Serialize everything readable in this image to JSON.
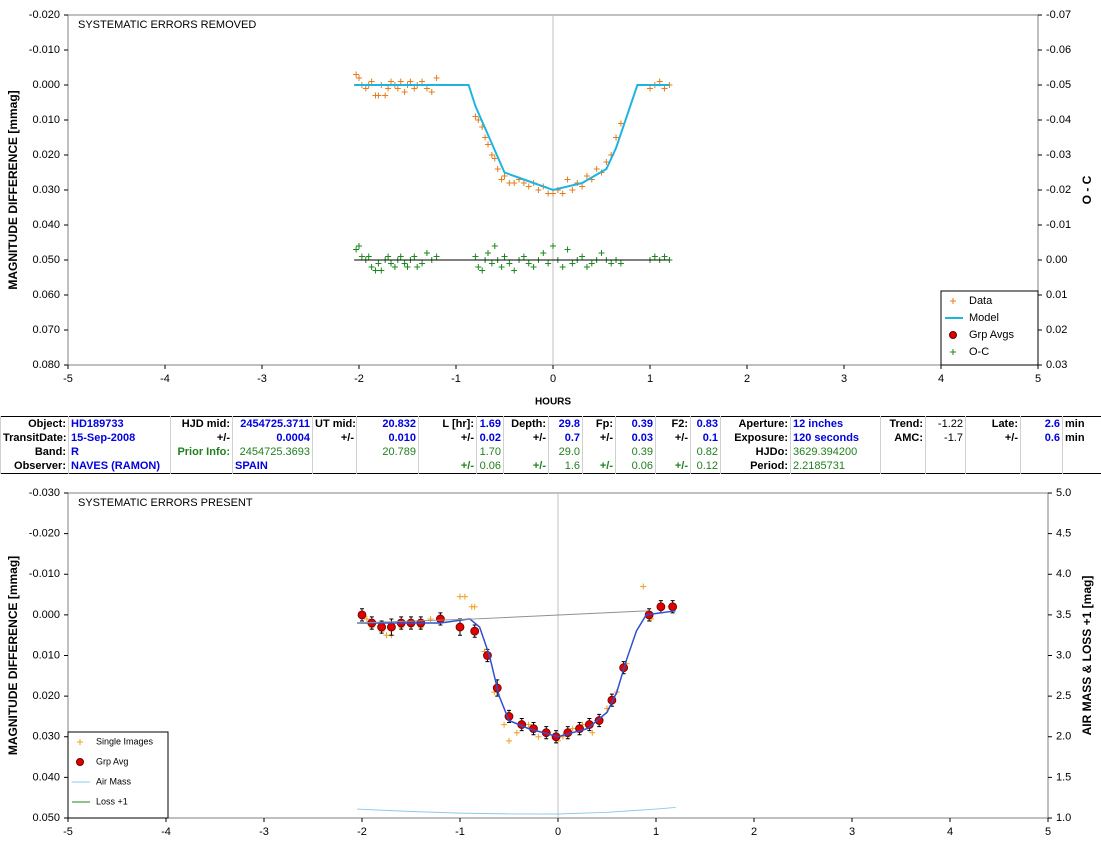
{
  "chart_data": [
    {
      "type": "line",
      "annotation": "SYSTEMATIC ERRORS REMOVED",
      "xlabel": "HOURS",
      "ylabel": "MAGNITUDE DIFFERENCE [mmag]",
      "y2label": "O - C",
      "xlim": [
        -5,
        5
      ],
      "xticks": [
        -5,
        -4,
        -3,
        -2,
        -1,
        0,
        1,
        2,
        3,
        4,
        5
      ],
      "ylim": [
        0.08,
        -0.02
      ],
      "yticks": [
        {
          "value": -0.02,
          "label": "-0.020"
        },
        {
          "value": -0.01,
          "label": "-0.010"
        },
        {
          "value": 0,
          "label": "0.000"
        },
        {
          "value": 0.01,
          "label": "0.010"
        },
        {
          "value": 0.02,
          "label": "0.020"
        },
        {
          "value": 0.03,
          "label": "0.030"
        },
        {
          "value": 0.04,
          "label": "0.040"
        },
        {
          "value": 0.05,
          "label": "0.050"
        },
        {
          "value": 0.06,
          "label": "0.060"
        },
        {
          "value": 0.07,
          "label": "0.070"
        },
        {
          "value": 0.08,
          "label": "0.080"
        }
      ],
      "y2lim": [
        0.03,
        -0.07
      ],
      "y2ticks": [
        -0.07,
        -0.06,
        -0.05,
        -0.04,
        -0.03,
        -0.02,
        -0.01,
        {
          "value": 0,
          "label": "0.00"
        },
        0.01,
        0.02,
        0.03
      ],
      "legend": "lower right",
      "series": [
        {
          "name": "Data",
          "mark": "plus",
          "color": "#e87b1e",
          "x": [
            -2.03,
            -2.0,
            -1.97,
            -1.93,
            -1.9,
            -1.87,
            -1.83,
            -1.8,
            -1.77,
            -1.73,
            -1.7,
            -1.67,
            -1.63,
            -1.6,
            -1.57,
            -1.53,
            -1.5,
            -1.47,
            -1.43,
            -1.4,
            -1.35,
            -1.3,
            -1.25,
            -1.2,
            -0.8,
            -0.77,
            -0.73,
            -0.7,
            -0.67,
            -0.63,
            -0.6,
            -0.57,
            -0.53,
            -0.5,
            -0.45,
            -0.4,
            -0.35,
            -0.3,
            -0.25,
            -0.2,
            -0.15,
            -0.1,
            -0.05,
            0.0,
            0.05,
            0.1,
            0.15,
            0.2,
            0.25,
            0.3,
            0.35,
            0.4,
            0.45,
            0.5,
            0.55,
            0.6,
            0.65,
            0.7,
            1.0,
            1.05,
            1.1,
            1.15,
            1.2
          ],
          "values": [
            -0.003,
            -0.002,
            0.0,
            0.001,
            0.0,
            -0.001,
            0.003,
            0.003,
            0.0,
            0.003,
            0.001,
            -0.001,
            0.0,
            0.001,
            -0.001,
            0.002,
            0.0,
            -0.001,
            0.001,
            0.0,
            -0.001,
            0.001,
            0.002,
            -0.002,
            0.009,
            0.01,
            0.012,
            0.015,
            0.017,
            0.02,
            0.021,
            0.024,
            0.027,
            0.026,
            0.028,
            0.028,
            0.027,
            0.028,
            0.029,
            0.028,
            0.03,
            0.029,
            0.031,
            0.031,
            0.03,
            0.031,
            0.027,
            0.03,
            0.028,
            0.029,
            0.026,
            0.027,
            0.024,
            0.025,
            0.022,
            0.02,
            0.015,
            0.011,
            0.001,
            0.0,
            -0.001,
            0.001,
            0.0
          ]
        },
        {
          "name": "Model",
          "mark": "line",
          "color": "#1fb4e0",
          "width": 2,
          "x": [
            -2.05,
            -0.87,
            -0.8,
            -0.5,
            -0.3,
            0,
            0.3,
            0.55,
            0.65,
            0.87,
            1.2
          ],
          "values": [
            0,
            0,
            0.006,
            0.025,
            0.027,
            0.03,
            0.028,
            0.024,
            0.018,
            0,
            0
          ]
        },
        {
          "name": "Grp Avgs",
          "mark": "circle",
          "color": "#e00000",
          "x": [],
          "values": []
        },
        {
          "name": "O-C",
          "mark": "plus",
          "color": "#1a8a1a",
          "axis": "y2",
          "x": [
            -2.03,
            -2.0,
            -1.97,
            -1.93,
            -1.9,
            -1.87,
            -1.83,
            -1.8,
            -1.77,
            -1.73,
            -1.7,
            -1.67,
            -1.63,
            -1.6,
            -1.57,
            -1.53,
            -1.5,
            -1.47,
            -1.43,
            -1.4,
            -1.35,
            -1.3,
            -1.25,
            -1.2,
            -0.8,
            -0.77,
            -0.73,
            -0.7,
            -0.67,
            -0.63,
            -0.6,
            -0.57,
            -0.53,
            -0.5,
            -0.45,
            -0.4,
            -0.35,
            -0.3,
            -0.25,
            -0.2,
            -0.15,
            -0.1,
            -0.05,
            0.0,
            0.05,
            0.1,
            0.15,
            0.2,
            0.25,
            0.3,
            0.35,
            0.4,
            0.45,
            0.5,
            0.55,
            0.6,
            0.65,
            0.7,
            1.0,
            1.05,
            1.1,
            1.15,
            1.2
          ],
          "values": [
            -0.003,
            -0.004,
            -0.001,
            0.0,
            -0.001,
            0.002,
            0.003,
            0.001,
            0.003,
            0.0,
            -0.001,
            0.001,
            0.002,
            0.0,
            -0.001,
            0.001,
            0.002,
            0.0,
            -0.001,
            0.002,
            0.001,
            -0.002,
            0.0,
            -0.001,
            -0.001,
            0.002,
            0.003,
            0.0,
            -0.002,
            0.001,
            -0.004,
            0.0,
            0.002,
            -0.001,
            0.001,
            0.003,
            0.0,
            -0.001,
            0.001,
            0.002,
            0.0,
            -0.002,
            0.001,
            -0.004,
            0.0,
            0.002,
            -0.003,
            0.001,
            0.0,
            -0.001,
            0.002,
            0.001,
            0.0,
            -0.002,
            0.0,
            0.001,
            0.0,
            0.001,
            0.0,
            -0.001,
            0.0,
            -0.001,
            0.0
          ]
        },
        {
          "mark": "line",
          "color": "#000000",
          "axis": "y2",
          "width": 1,
          "x": [
            -2.05,
            1.2
          ],
          "values": [
            0,
            0
          ]
        }
      ]
    },
    {
      "type": "line",
      "annotation": "SYSTEMATIC ERRORS PRESENT",
      "ylabel": "MAGNITUDE DIFFERENCE [mmag]",
      "y2label": "AIR MASS & LOSS +1 [mag]",
      "xlim": [
        -5,
        5
      ],
      "xticks": [
        -5,
        -4,
        -3,
        -2,
        -1,
        0,
        1,
        2,
        3,
        4,
        5
      ],
      "ylim": [
        0.05,
        -0.03
      ],
      "yticks": [
        {
          "value": -0.03,
          "label": "-0.030"
        },
        {
          "value": -0.02,
          "label": "-0.020"
        },
        {
          "value": -0.01,
          "label": "-0.010"
        },
        {
          "value": 0,
          "label": "0.000"
        },
        {
          "value": 0.01,
          "label": "0.010"
        },
        {
          "value": 0.02,
          "label": "0.020"
        },
        {
          "value": 0.03,
          "label": "0.030"
        },
        {
          "value": 0.04,
          "label": "0.040"
        },
        {
          "value": 0.05,
          "label": "0.050"
        }
      ],
      "y2lim": [
        1,
        5
      ],
      "y2ticks": [
        {
          "value": 1,
          "label": "1.0"
        },
        1.5,
        {
          "value": 2,
          "label": "2.0"
        },
        2.5,
        {
          "value": 3,
          "label": "3.0"
        },
        3.5,
        {
          "value": 4,
          "label": "4.0"
        },
        4.5,
        {
          "value": 5,
          "label": "5.0"
        }
      ],
      "legend": "lower left",
      "series": [
        {
          "name": "Single Images",
          "mark": "plus",
          "color": "#f0a020",
          "x": [
            -1.95,
            -1.9,
            -1.8,
            -1.75,
            -1.7,
            -1.6,
            -1.5,
            -1.4,
            -1.3,
            -1.0,
            -0.95,
            -0.88,
            -0.85,
            -0.75,
            -0.65,
            -0.55,
            -0.5,
            -0.42,
            -0.3,
            -0.2,
            -0.1,
            0.0,
            0.05,
            0.15,
            0.25,
            0.35,
            0.4,
            0.5,
            0.6,
            0.7,
            0.87,
            0.95,
            1.05,
            1.15
          ],
          "values": [
            0.001,
            0.003,
            0.004,
            0.005,
            0.005,
            0.003,
            0.002,
            0.003,
            0.001,
            -0.0045,
            -0.0045,
            -0.002,
            -0.002,
            0.009,
            0.019,
            0.027,
            0.031,
            0.029,
            0.027,
            0.03,
            0.029,
            0.031,
            0.03,
            0.028,
            0.027,
            0.029,
            0.026,
            0.023,
            0.019,
            0.012,
            -0.007,
            0.001,
            -0.002,
            -0.002
          ]
        },
        {
          "name": "Grp Avg",
          "mark": "circle",
          "color": "#e00000",
          "x": [
            -2.0,
            -1.9,
            -1.8,
            -1.7,
            -1.6,
            -1.5,
            -1.4,
            -1.2,
            -1.0,
            -0.85,
            -0.72,
            -0.62,
            -0.5,
            -0.37,
            -0.25,
            -0.12,
            -0.02,
            0.1,
            0.22,
            0.32,
            0.42,
            0.55,
            0.67,
            0.93,
            1.05,
            1.17
          ],
          "values": [
            0.0,
            0.002,
            0.003,
            0.003,
            0.002,
            0.002,
            0.002,
            0.001,
            0.003,
            0.004,
            0.01,
            0.018,
            0.025,
            0.027,
            0.028,
            0.029,
            0.03,
            0.029,
            0.028,
            0.027,
            0.026,
            0.021,
            0.013,
            0.0,
            -0.002,
            -0.002
          ],
          "error": [
            0.0015,
            0.0015,
            0.0015,
            0.002,
            0.0015,
            0.0015,
            0.0015,
            0.0015,
            0.002,
            0.0015,
            0.0015,
            0.002,
            0.0015,
            0.0015,
            0.0015,
            0.0015,
            0.0015,
            0.0015,
            0.0015,
            0.0015,
            0.0015,
            0.0015,
            0.0015,
            0.0015,
            0.0015,
            0.0015
          ]
        },
        {
          "name": "Air Mass",
          "mark": "line",
          "color": "#8cc8ec",
          "axis": "y2",
          "width": 1,
          "x": [
            -2.05,
            -1.5,
            -1.0,
            -0.5,
            0,
            0.5,
            1.0,
            1.2
          ],
          "values": [
            1.11,
            1.08,
            1.06,
            1.05,
            1.05,
            1.07,
            1.11,
            1.13
          ]
        },
        {
          "name": "Loss +1",
          "mark": "line",
          "color": "#1a8a1a",
          "axis": "y2",
          "width": 1,
          "x": [],
          "values": []
        },
        {
          "mark": "line",
          "color": "#3050d0",
          "width": 1.5,
          "x": [
            -2.05,
            -1.2,
            -0.9,
            -0.8,
            -0.7,
            -0.6,
            -0.5,
            -0.3,
            0,
            0.3,
            0.5,
            0.6,
            0.7,
            0.8,
            0.9,
            1.2
          ],
          "values": [
            0.002,
            0.002,
            0.001,
            0.003,
            0.01,
            0.02,
            0.026,
            0.028,
            0.03,
            0.028,
            0.024,
            0.019,
            0.011,
            0.004,
            0.0,
            -0.001
          ]
        },
        {
          "mark": "line",
          "color": "#909090",
          "width": 1,
          "x": [
            -2.05,
            -0.85,
            0.92
          ],
          "values": [
            0.002,
            0.001,
            -0.001
          ]
        }
      ]
    }
  ],
  "table": {
    "rows": [
      [
        "Object:",
        "HD189733",
        "HJD mid:",
        "2454725.3711",
        "UT mid:",
        "20.832",
        "L [hr]:",
        "1.69",
        "Depth:",
        "29.8",
        "Fp:",
        "0.39",
        "F2:",
        "0.83",
        "Aperture:",
        "12 inches",
        "Trend:",
        "-1.22",
        "Late:",
        "2.6",
        "min"
      ],
      [
        "TransitDate:",
        "15-Sep-2008",
        "+/-",
        "0.0004",
        "+/-",
        "0.010",
        "+/-",
        "0.02",
        "+/-",
        "0.7",
        "+/-",
        "0.03",
        "+/-",
        "0.1",
        "Exposure:",
        "120 seconds",
        "AMC:",
        "-1.7",
        "+/-",
        "0.6",
        "min"
      ],
      [
        "Band:",
        "R",
        "Prior Info:",
        "2454725.3693",
        null,
        "20.789",
        null,
        "1.70",
        null,
        "29.0",
        null,
        "0.39",
        null,
        "0.82",
        "HJDo:",
        "3629.394200",
        null,
        null,
        null,
        null,
        null
      ],
      [
        "Observer:",
        "NAVES (RAMON)",
        null,
        "SPAIN",
        null,
        null,
        "+/-",
        "0.06",
        "+/-",
        "1.6",
        "+/-",
        "0.06",
        "+/-",
        "0.12",
        "Period:",
        "2.2185731",
        null,
        null,
        null,
        null,
        null
      ]
    ]
  }
}
